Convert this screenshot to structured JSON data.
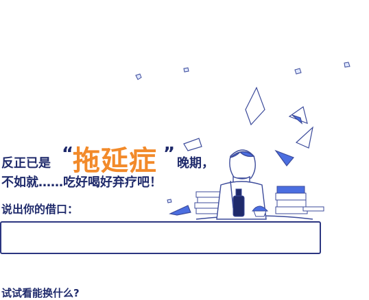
{
  "headline": {
    "prefix": "反正已是",
    "quote_open": "“",
    "highlight": "拖延症",
    "quote_close": "”",
    "suffix": "晚期，",
    "line2": "不如就……吃好喝好弃疗吧！"
  },
  "form": {
    "prompt": "说出你的借口：",
    "excuse_value": "",
    "excuse_placeholder": ""
  },
  "footer": {
    "swap_link": "试试看能换什么?"
  },
  "colors": {
    "primary": "#1f2a6b",
    "accent_orange": "#f28a2a",
    "accent_blue": "#4b6ee0"
  },
  "icons": [
    "procrastination-illustration",
    "flying-paper-icon",
    "book-stack-icon",
    "bottle-icon",
    "cupcake-icon"
  ]
}
